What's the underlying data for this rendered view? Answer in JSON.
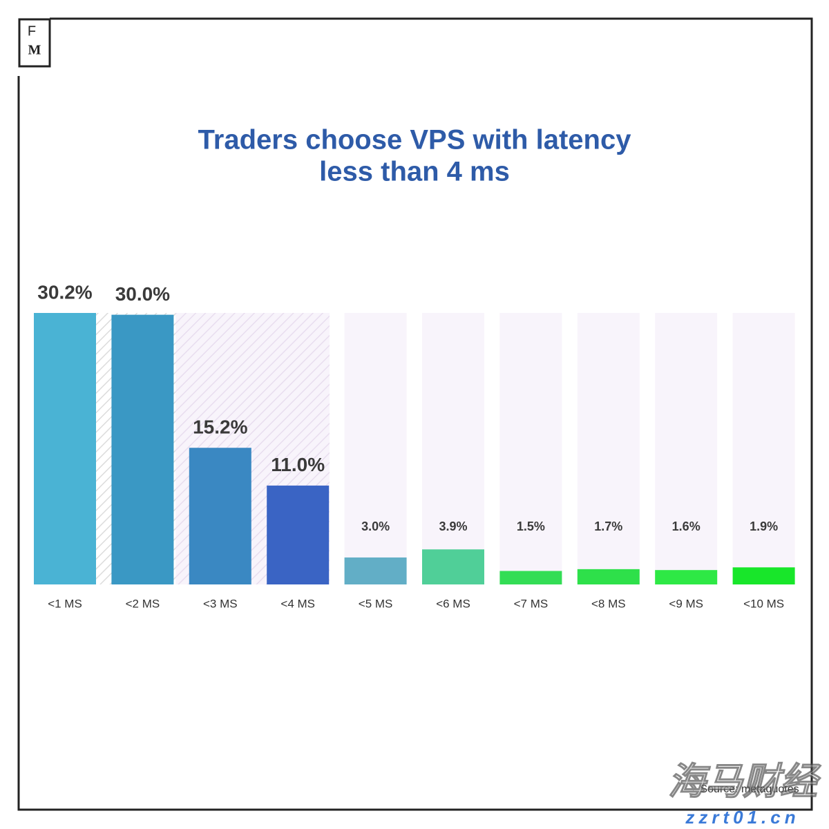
{
  "logo": {
    "top": "F",
    "bottom": "M"
  },
  "chart_data": {
    "type": "bar",
    "title": [
      "Traders choose VPS with latency",
      "less than 4 ms"
    ],
    "categories": [
      "<1 MS",
      "<2 MS",
      "<3 MS",
      "<4 MS",
      "<5 MS",
      "<6 MS",
      "<7 MS",
      "<8 MS",
      "<9 MS",
      "<10 MS"
    ],
    "values": [
      30.2,
      30.0,
      15.2,
      11.0,
      3.0,
      3.9,
      1.5,
      1.7,
      1.6,
      1.9
    ],
    "value_labels": [
      "30.2%",
      "30.0%",
      "15.2%",
      "11.0%",
      "3.0%",
      "3.9%",
      "1.5%",
      "1.7%",
      "1.6%",
      "1.9%"
    ],
    "colors": [
      "#4ab3d4",
      "#3a98c4",
      "#3a88c2",
      "#3a64c4",
      "#62aec6",
      "#50cf98",
      "#33dd55",
      "#2ee04a",
      "#2ee845",
      "#18e62a"
    ],
    "source": "Source: metaquotes"
  },
  "watermark": {
    "text": "海马财经",
    "url": "zzrt01.cn"
  }
}
